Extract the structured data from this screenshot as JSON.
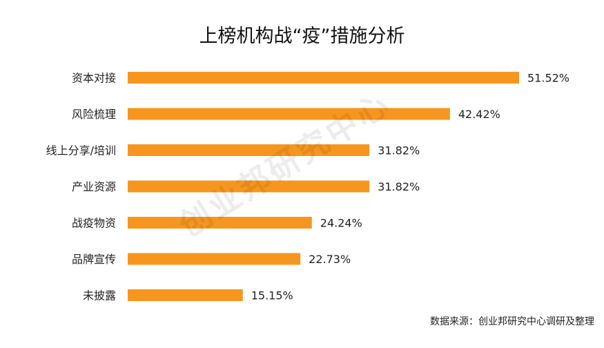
{
  "chart_data": {
    "type": "bar",
    "orientation": "horizontal",
    "title": "上榜机构战“疫”措施分析",
    "categories": [
      "资本对接",
      "风险梳理",
      "线上分享/培训",
      "产业资源",
      "战疫物资",
      "品牌宣传",
      "未披露"
    ],
    "values": [
      51.52,
      42.42,
      31.82,
      31.82,
      24.24,
      22.73,
      15.15
    ],
    "value_labels": [
      "51.52%",
      "42.42%",
      "31.82%",
      "31.82%",
      "24.24%",
      "22.73%",
      "15.15%"
    ],
    "unit": "%",
    "xlim": [
      0,
      51.52
    ],
    "grid": false,
    "legend": "none",
    "bar_color": "#f7961e"
  },
  "watermark": "创业邦研究中心",
  "source": "数据来源：创业邦研究中心调研及整理"
}
